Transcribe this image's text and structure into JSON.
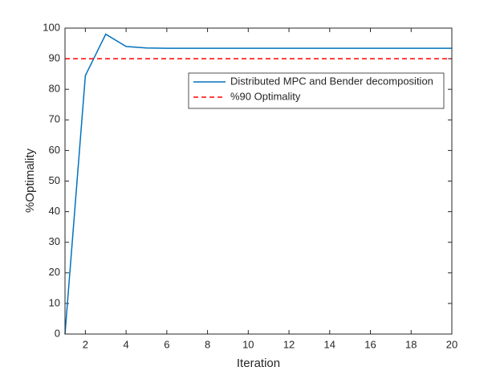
{
  "chart_data": {
    "type": "line",
    "xlabel": "Iteration",
    "ylabel": "%Optimality",
    "x": [
      1,
      2,
      3,
      4,
      5,
      6,
      7,
      8,
      9,
      10,
      11,
      12,
      13,
      14,
      15,
      16,
      17,
      18,
      19,
      20
    ],
    "series": [
      {
        "name": "Distributed MPC and Bender decomposition",
        "color": "#0072bd",
        "dash": false,
        "values": [
          0,
          84.5,
          98,
          94,
          93.5,
          93.4,
          93.4,
          93.4,
          93.4,
          93.4,
          93.4,
          93.4,
          93.4,
          93.4,
          93.4,
          93.4,
          93.4,
          93.4,
          93.4,
          93.4
        ]
      },
      {
        "name": "%90 Optimality",
        "color": "#ff0000",
        "dash": true,
        "values": [
          90,
          90,
          90,
          90,
          90,
          90,
          90,
          90,
          90,
          90,
          90,
          90,
          90,
          90,
          90,
          90,
          90,
          90,
          90,
          90
        ]
      }
    ],
    "xlim": [
      1,
      20
    ],
    "xticks": [
      2,
      4,
      6,
      8,
      10,
      12,
      14,
      16,
      18,
      20
    ],
    "ylim": [
      0,
      100
    ],
    "yticks": [
      0,
      10,
      20,
      30,
      40,
      50,
      60,
      70,
      80,
      90,
      100
    ],
    "grid": false,
    "legend": "northeast"
  }
}
